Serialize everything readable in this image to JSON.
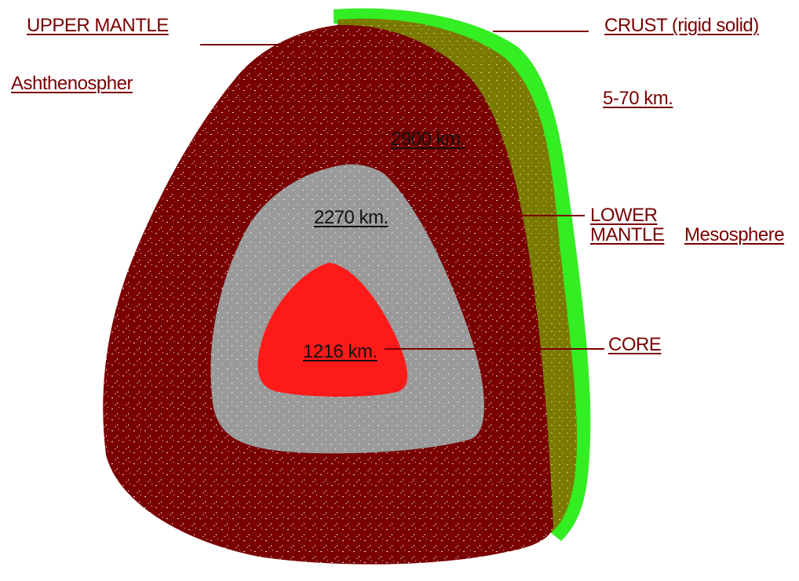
{
  "labels": {
    "upper_mantle": "UPPER MANTLE",
    "asthenosphere": "Ashthenospher",
    "crust": "CRUST (rigid  solid)",
    "crust_thickness": "5-70  km.",
    "lower_mantle_line1": "LOWER",
    "lower_mantle_line2": "MANTLE",
    "mesosphere": "Mesosphere",
    "core": "CORE"
  },
  "depth_labels": {
    "mantle_depth": "2900  km.",
    "outer_core_depth": "2270  km.",
    "inner_core_depth": "1216  km."
  },
  "colors": {
    "crust": "#33ee22",
    "crust_inner": "#7a7a00",
    "mantle": "#7a0000",
    "outer_core": "#9a9a9a",
    "inner_core": "#ff1a1a",
    "label_text": "#7a0000",
    "leader_line": "#7a0000"
  }
}
